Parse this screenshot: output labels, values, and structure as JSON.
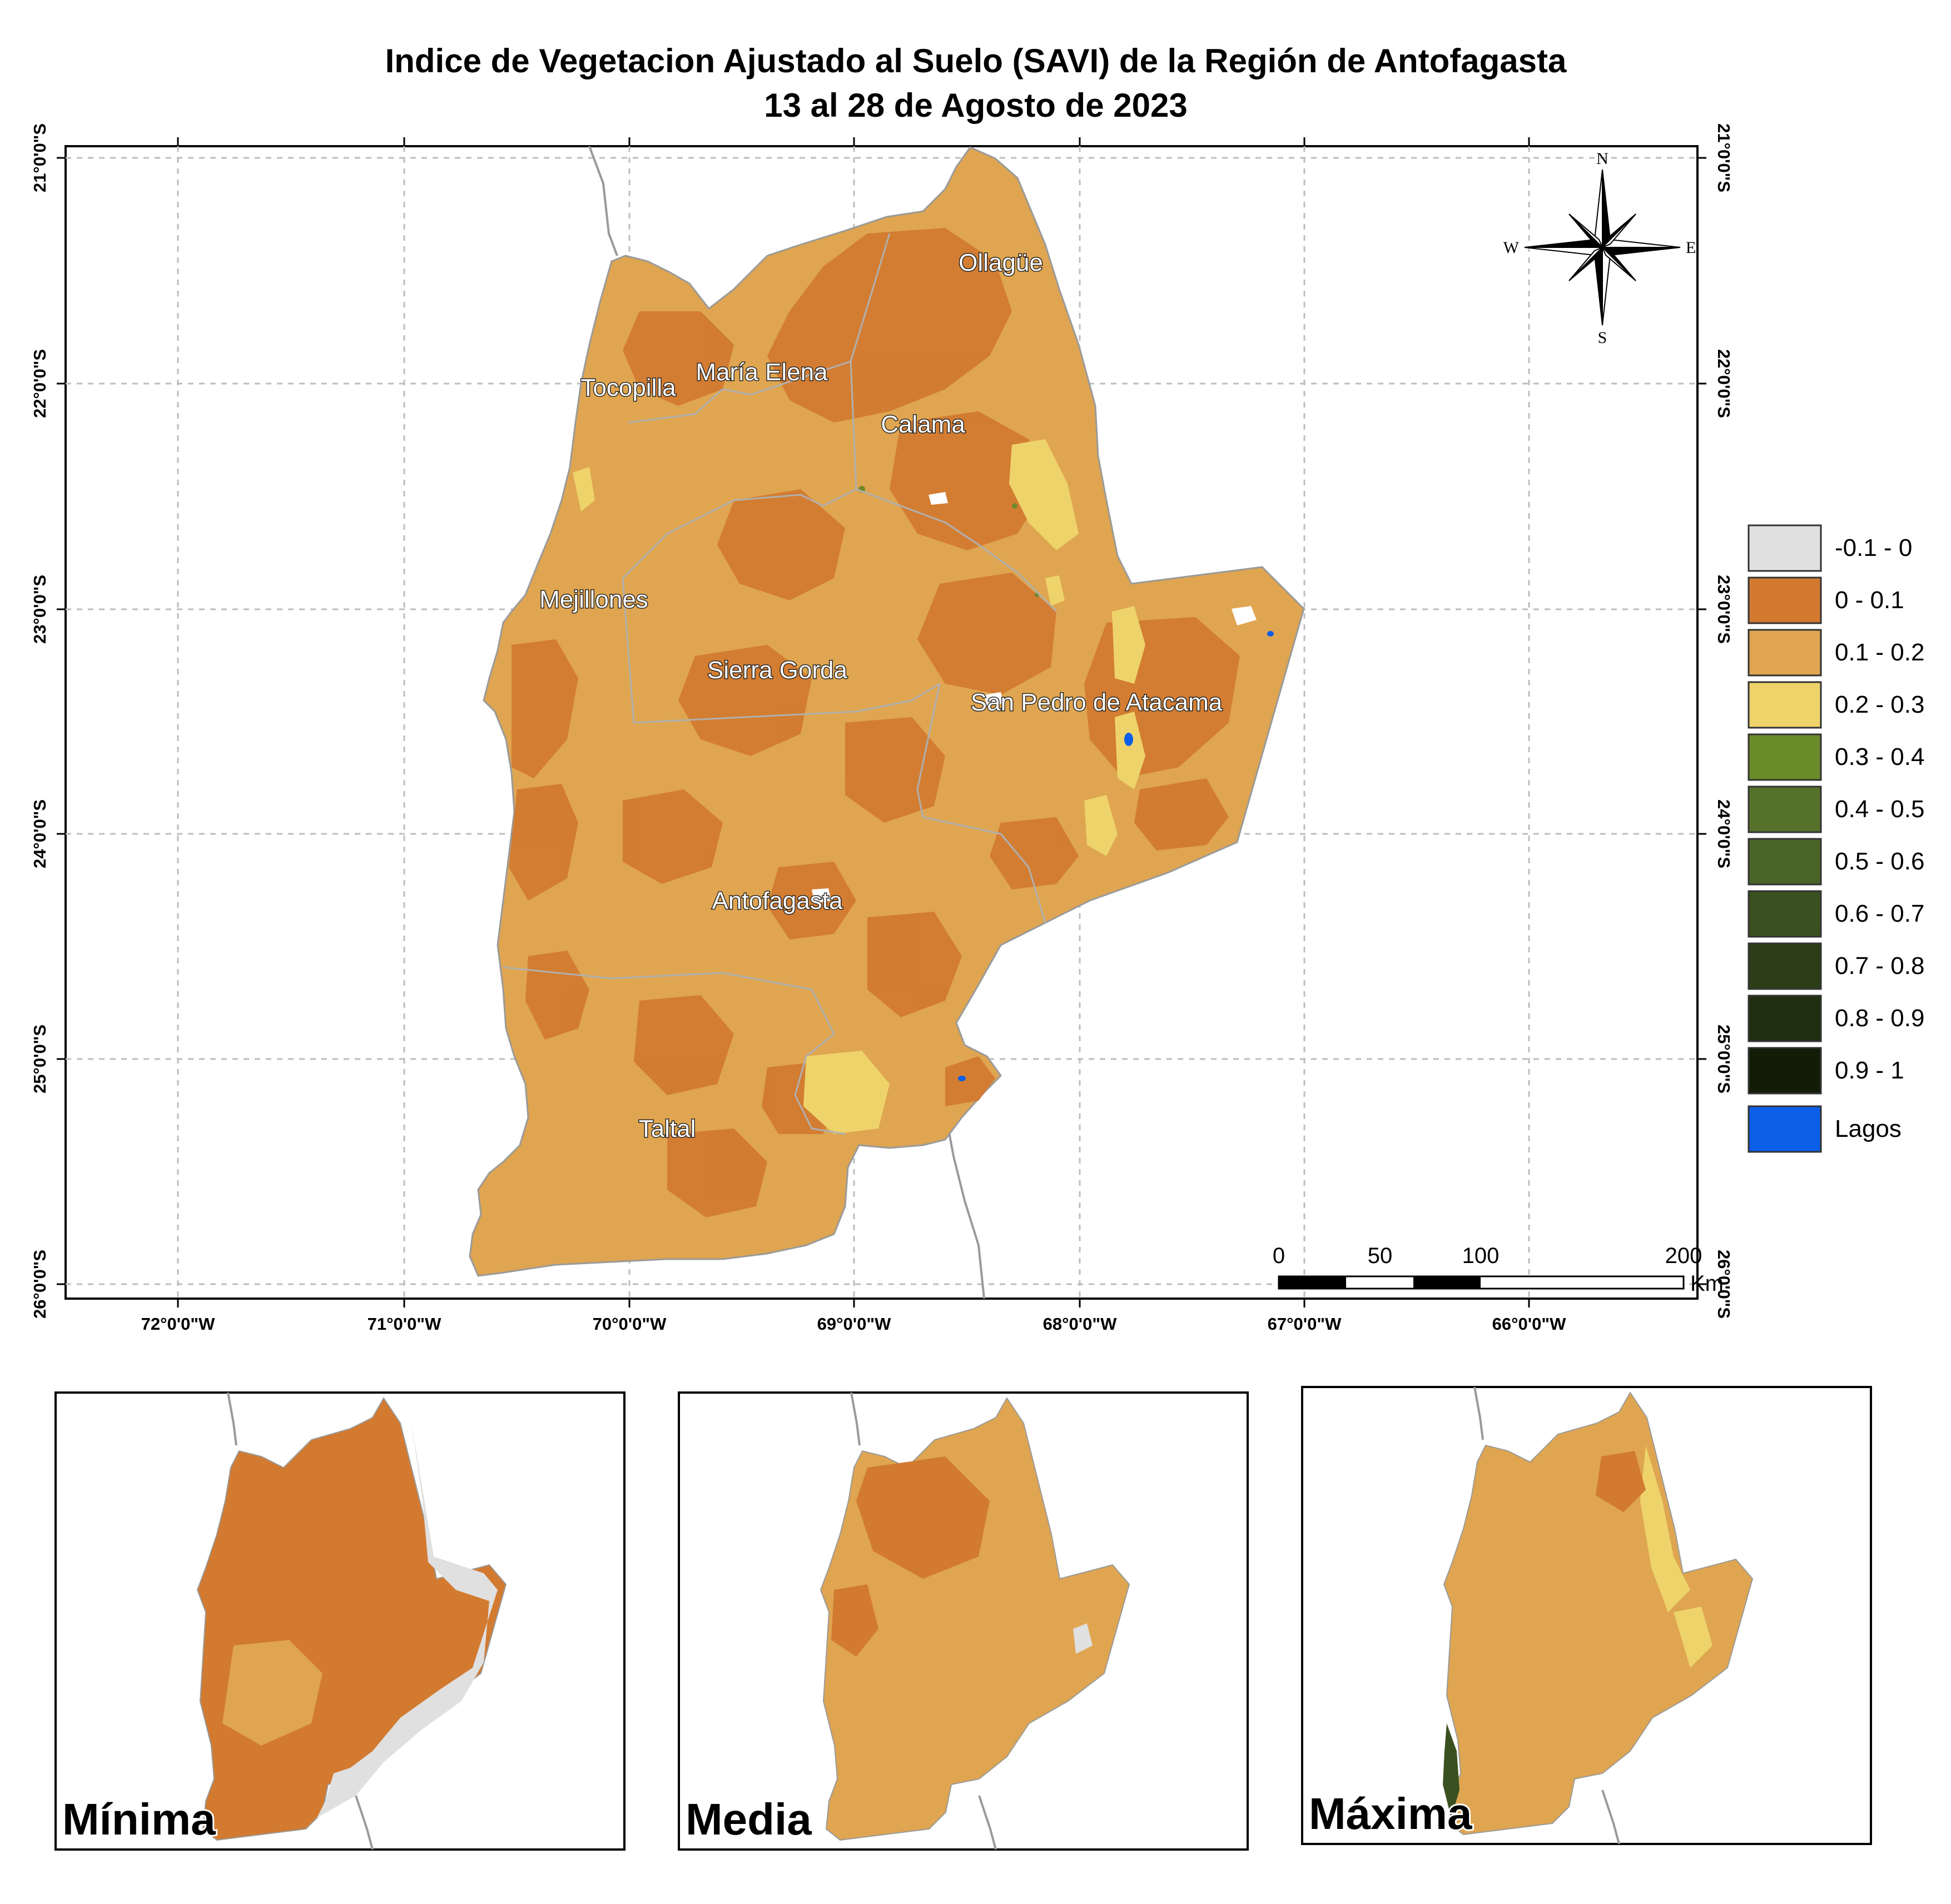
{
  "title": {
    "line1": "Indice de Vegetacion Ajustado al Suelo (SAVI) de la Región de Antofagasta",
    "line2": "13 al 28 de Agosto de 2023"
  },
  "map": {
    "lon_ticks": [
      "72°0'0\"W",
      "71°0'0\"W",
      "70°0'0\"W",
      "69°0'0\"W",
      "68°0'0\"W",
      "67°0'0\"W",
      "66°0'0\"W"
    ],
    "lat_ticks": [
      "21°0'0\"S",
      "22°0'0\"S",
      "23°0'0\"S",
      "24°0'0\"S",
      "25°0'0\"S",
      "26°0'0\"S"
    ],
    "cities": [
      "Ollagüe",
      "Tocopilla",
      "María Elena",
      "Calama",
      "Mejillones",
      "Sierra Gorda",
      "San Pedro de Atacama",
      "Antofagasta",
      "Taltal"
    ],
    "compass": {
      "n": "N",
      "s": "S",
      "e": "E",
      "w": "W",
      "icon": "compass-rose-icon"
    },
    "scale_bar": {
      "labels": [
        "0",
        "50",
        "100",
        "200"
      ],
      "unit": "Km"
    }
  },
  "legend": {
    "items": [
      {
        "label": "-0.1 - 0",
        "color": "#e0e0e0"
      },
      {
        "label": "0 - 0.1",
        "color": "#d27a30"
      },
      {
        "label": "0.1 - 0.2",
        "color": "#dfa550"
      },
      {
        "label": "0.2 - 0.3",
        "color": "#eed36b"
      },
      {
        "label": "0.3 - 0.4",
        "color": "#6b8a2a"
      },
      {
        "label": "0.4 - 0.5",
        "color": "#56712a"
      },
      {
        "label": "0.5 - 0.6",
        "color": "#4a6326"
      },
      {
        "label": "0.6 - 0.7",
        "color": "#3a5020"
      },
      {
        "label": "0.7 - 0.8",
        "color": "#2b3e17"
      },
      {
        "label": "0.8 - 0.9",
        "color": "#1f2f10"
      },
      {
        "label": "0.9 - 1",
        "color": "#121d08"
      },
      {
        "label": "Lagos",
        "color": "#0b5ee8"
      }
    ]
  },
  "insets": [
    "Mínima",
    "Media",
    "Máxima"
  ],
  "colors": {
    "frame": "#000000",
    "grid": "#bdbdbd",
    "border": "#9a9a9a"
  }
}
